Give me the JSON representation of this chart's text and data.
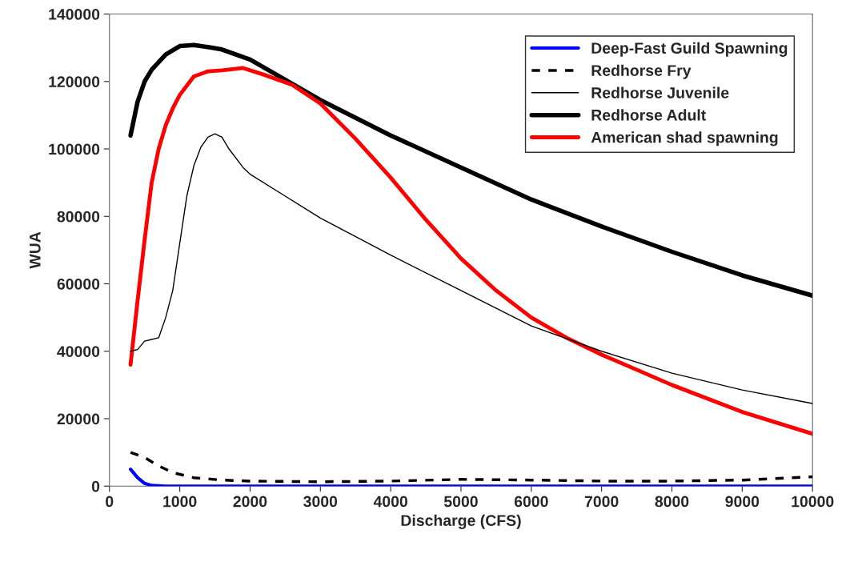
{
  "chart_data": {
    "type": "line",
    "xlabel": "Discharge (CFS)",
    "ylabel": "WUA",
    "xlim": [
      0,
      10000
    ],
    "xticks": [
      0,
      1000,
      2000,
      3000,
      4000,
      5000,
      6000,
      7000,
      8000,
      9000,
      10000
    ],
    "ylim": [
      0,
      140000
    ],
    "yticks": [
      0,
      20000,
      40000,
      60000,
      80000,
      100000,
      120000,
      140000
    ],
    "grid": false,
    "legend": "top right",
    "marker": "none",
    "series": [
      {
        "name": "Deep-Fast Guild Spawning",
        "color": "#0000ff",
        "line_style": "solid",
        "x": [
          300,
          400,
          500,
          600,
          800,
          10000
        ],
        "values": [
          5000,
          2500,
          800,
          200,
          0,
          0
        ]
      },
      {
        "name": "Redhorse Fry",
        "color": "#000000",
        "line_style": "dashed",
        "x": [
          300,
          500,
          700,
          900,
          1200,
          1600,
          2000,
          3000,
          4000,
          5000,
          6000,
          7000,
          8000,
          9000,
          10000
        ],
        "values": [
          10000,
          8500,
          6000,
          4000,
          2500,
          1800,
          1500,
          1300,
          1500,
          2000,
          1800,
          1500,
          1500,
          1800,
          2800
        ]
      },
      {
        "name": "Redhorse Juvenile",
        "color": "#000000",
        "line_style": "solid",
        "x": [
          300,
          400,
          500,
          600,
          700,
          800,
          900,
          1000,
          1100,
          1200,
          1300,
          1400,
          1500,
          1600,
          1700,
          1900,
          2000,
          2500,
          3000,
          4000,
          5000,
          6000,
          7000,
          8000,
          9000,
          10000
        ],
        "values": [
          40000,
          40500,
          43000,
          43500,
          44000,
          50000,
          58000,
          72000,
          86000,
          95000,
          100500,
          103500,
          104500,
          103500,
          100000,
          94500,
          92500,
          86000,
          79500,
          68500,
          58000,
          47500,
          40000,
          33500,
          28500,
          24500
        ]
      },
      {
        "name": "Redhorse Adult",
        "color": "#000000",
        "line_style": "solid",
        "x": [
          300,
          400,
          500,
          600,
          800,
          1000,
          1200,
          1400,
          1600,
          2000,
          2500,
          3000,
          4000,
          5000,
          6000,
          7000,
          8000,
          9000,
          10000
        ],
        "values": [
          104000,
          114000,
          120000,
          123500,
          128000,
          130500,
          130800,
          130200,
          129500,
          126500,
          120500,
          114500,
          104000,
          94500,
          85000,
          77000,
          69500,
          62500,
          56500
        ]
      },
      {
        "name": "American shad spawning",
        "color": "#ff0000",
        "line_style": "solid",
        "x": [
          300,
          400,
          500,
          600,
          700,
          800,
          900,
          1000,
          1200,
          1400,
          1600,
          1900,
          2200,
          2600,
          3000,
          3500,
          4000,
          4500,
          5000,
          5500,
          6000,
          6500,
          7000,
          8000,
          9000,
          10000
        ],
        "values": [
          36000,
          55000,
          73000,
          90000,
          100000,
          107000,
          112000,
          116000,
          121500,
          123000,
          123300,
          124000,
          122000,
          119000,
          113500,
          103000,
          91500,
          79000,
          67500,
          58000,
          50000,
          44000,
          39000,
          30000,
          22000,
          15500
        ]
      }
    ]
  }
}
